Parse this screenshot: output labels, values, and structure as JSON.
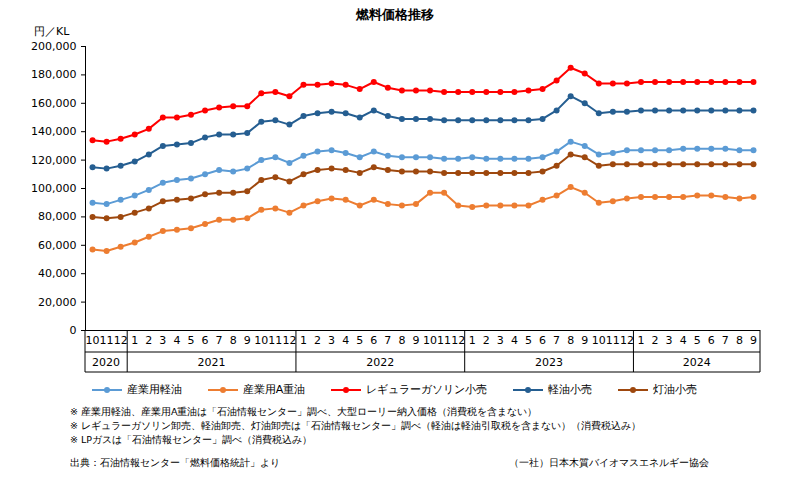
{
  "chart_data": {
    "type": "line",
    "title": "燃料価格推移",
    "y_label": "円／KL",
    "categories": [
      "10",
      "11",
      "12",
      "1",
      "2",
      "3",
      "4",
      "5",
      "6",
      "7",
      "8",
      "9",
      "10",
      "11",
      "12",
      "1",
      "2",
      "3",
      "4",
      "5",
      "6",
      "7",
      "8",
      "9",
      "10",
      "11",
      "12",
      "1",
      "2",
      "3",
      "4",
      "5",
      "6",
      "7",
      "8",
      "9",
      "10",
      "11",
      "12",
      "1",
      "2",
      "3",
      "4",
      "5",
      "6",
      "7",
      "8",
      "9"
    ],
    "years": [
      "2020",
      "2021",
      "2022",
      "2023",
      "2024"
    ],
    "ylim": [
      0,
      200000
    ],
    "yticks": [
      0,
      {
        "value": 20000,
        "label": "20,000"
      },
      {
        "value": 40000,
        "label": "40,000"
      },
      {
        "value": 60000,
        "label": "60,000"
      },
      {
        "value": 80000,
        "label": "80,000"
      },
      {
        "value": 100000,
        "label": "100,000"
      },
      {
        "value": 120000,
        "label": "120,000"
      },
      {
        "value": 140000,
        "label": "140,000"
      },
      {
        "value": 160000,
        "label": "160,000"
      },
      {
        "value": 180000,
        "label": "180,000"
      },
      {
        "value": 200000,
        "label": "200,000"
      }
    ],
    "grid": false,
    "marker": "circle",
    "series": [
      {
        "name": "産業用軽油",
        "color": "#5b9bd5",
        "values": [
          90000,
          89000,
          92000,
          95000,
          99000,
          104000,
          106000,
          107000,
          110000,
          113000,
          112000,
          114000,
          120000,
          122000,
          118000,
          123000,
          126000,
          127000,
          125000,
          122000,
          126000,
          123000,
          122000,
          122000,
          122000,
          121000,
          121000,
          122000,
          121000,
          121000,
          121000,
          121000,
          122000,
          126000,
          133000,
          130000,
          124000,
          125000,
          127000,
          127000,
          127000,
          127000,
          128000,
          128000,
          128000,
          128000,
          127000,
          127000
        ]
      },
      {
        "name": "産業用A重油",
        "color": "#ed7d31",
        "values": [
          57000,
          56000,
          59000,
          62000,
          66000,
          70000,
          71000,
          72000,
          75000,
          78000,
          78000,
          79000,
          85000,
          86000,
          83000,
          88000,
          91000,
          93000,
          92000,
          88000,
          92000,
          89000,
          88000,
          89000,
          97000,
          97000,
          88000,
          87000,
          88000,
          88000,
          88000,
          88000,
          92000,
          95000,
          101000,
          97000,
          90000,
          91000,
          93000,
          94000,
          94000,
          94000,
          94000,
          95000,
          95000,
          94000,
          93000,
          94000
        ]
      },
      {
        "name": "レギュラーガソリン小売",
        "color": "#ff0000",
        "values": [
          134000,
          133000,
          135000,
          138000,
          142000,
          150000,
          150000,
          152000,
          155000,
          157000,
          158000,
          158000,
          167000,
          168000,
          165000,
          173000,
          173000,
          174000,
          173000,
          170000,
          175000,
          171000,
          169000,
          169000,
          169000,
          168000,
          168000,
          168000,
          168000,
          168000,
          168000,
          169000,
          170000,
          176000,
          185000,
          181000,
          174000,
          174000,
          174000,
          175000,
          175000,
          175000,
          175000,
          175000,
          175000,
          175000,
          175000,
          175000
        ]
      },
      {
        "name": "軽油小売",
        "color": "#255e91",
        "values": [
          115000,
          114000,
          116000,
          119000,
          124000,
          130000,
          131000,
          132000,
          136000,
          138000,
          138000,
          139000,
          147000,
          148000,
          145000,
          151000,
          153000,
          154000,
          153000,
          150000,
          155000,
          151000,
          149000,
          149000,
          149000,
          148000,
          148000,
          148000,
          148000,
          148000,
          148000,
          148000,
          149000,
          155000,
          165000,
          160000,
          153000,
          154000,
          154000,
          155000,
          155000,
          155000,
          155000,
          155000,
          155000,
          155000,
          155000,
          155000
        ]
      },
      {
        "name": "灯油小売",
        "color": "#9e480e",
        "values": [
          80000,
          79000,
          80000,
          83000,
          86000,
          91000,
          92000,
          93000,
          96000,
          97000,
          97000,
          98000,
          106000,
          108000,
          105000,
          110000,
          113000,
          114000,
          113000,
          111000,
          115000,
          113000,
          112000,
          112000,
          112000,
          111000,
          111000,
          111000,
          111000,
          111000,
          111000,
          111000,
          112000,
          116000,
          124000,
          122000,
          116000,
          117000,
          117000,
          117000,
          117000,
          117000,
          117000,
          117000,
          117000,
          117000,
          117000,
          117000
        ]
      }
    ],
    "notes": [
      "※ 産業用軽油、産業用A重油は「石油情報センター」調べ、大型ローリー納入価格（消費税を含まない）",
      "※ レギュラーガソリン卸売、軽油卸売、灯油卸売は「石油情報センター」調べ（軽油は軽油引取税を含まない）（消費税込み）",
      "※ LPガスは「石油情報センター」調べ（消費税込み）"
    ],
    "source": "出典：石油情報センター「燃料価格統計」より",
    "credit": "（一社）日本木質バイオマスエネルギー協会"
  }
}
